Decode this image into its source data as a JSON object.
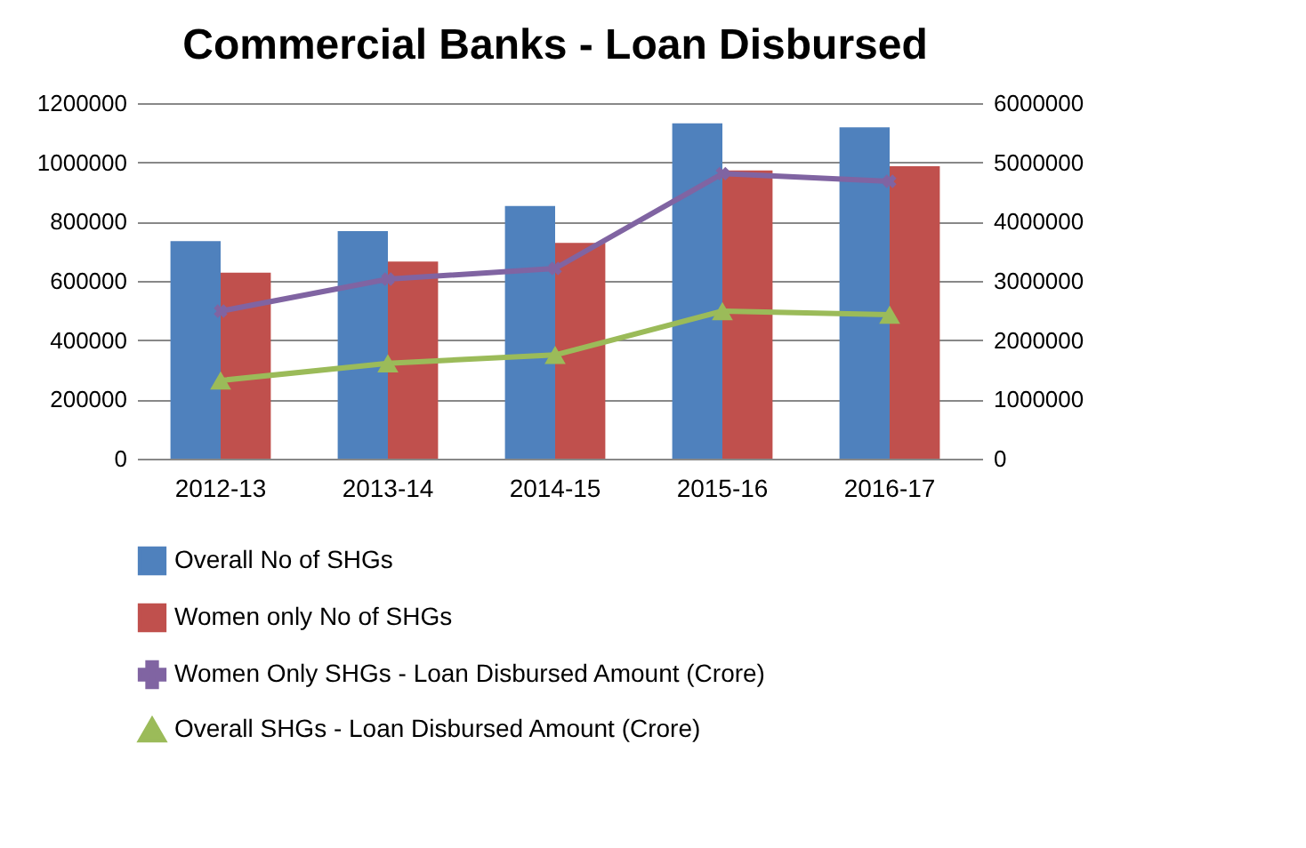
{
  "chart_data": {
    "type": "bar",
    "title": "Commercial Banks - Loan Disbursed",
    "categories": [
      "2012-13",
      "2013-14",
      "2014-15",
      "2015-16",
      "2016-17"
    ],
    "series": [
      {
        "name": "Overall No of SHGs",
        "type": "bar",
        "color": "#4f81bd",
        "values": [
          734000,
          768000,
          853000,
          1132000,
          1118000
        ]
      },
      {
        "name": "Women only No of SHGs",
        "type": "bar",
        "color": "#c0504d",
        "values": [
          628000,
          665000,
          728000,
          973000,
          987000
        ]
      },
      {
        "name": "Women Only SHGs - Loan Disbursed Amount (Crore)",
        "type": "line",
        "axis": "y2",
        "marker": "cross",
        "color": "#8064a2",
        "values": [
          2490000,
          3030000,
          3210000,
          4810000,
          4680000
        ]
      },
      {
        "name": "Overall SHGs - Loan Disbursed Amount (Crore)",
        "type": "line",
        "axis": "y2",
        "marker": "triangle",
        "color": "#9bbb59",
        "values": [
          1320000,
          1610000,
          1750000,
          2490000,
          2430000
        ]
      }
    ],
    "ylim": [
      0,
      1200000
    ],
    "yticks": [
      0,
      200000,
      400000,
      600000,
      800000,
      1000000,
      1200000
    ],
    "y2lim": [
      0,
      6000000
    ],
    "y2ticks": [
      0,
      1000000,
      2000000,
      3000000,
      4000000,
      5000000,
      6000000
    ],
    "grid": "y",
    "legend": "bottom"
  }
}
